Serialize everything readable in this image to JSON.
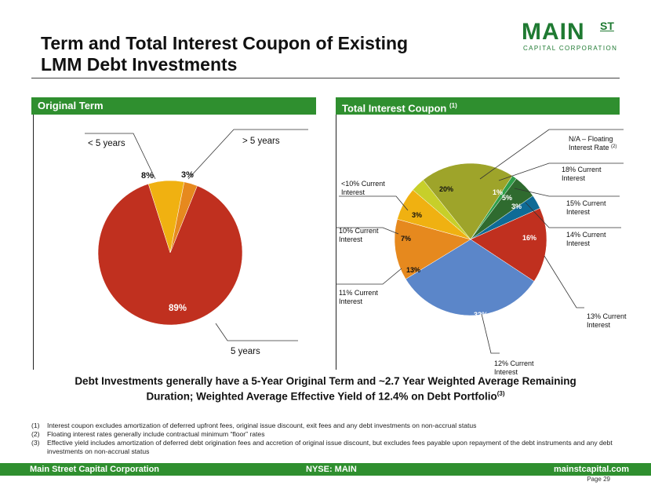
{
  "title_line1": "Term and Total Interest Coupon of Existing",
  "title_line2": "LMM Debt Investments",
  "logo": {
    "word": "MAIN",
    "st": "ST",
    "sub": "CAPITAL CORPORATION"
  },
  "left_header": "Original Term",
  "right_header": "Total Interest Coupon",
  "right_header_sup": "(1)",
  "headline_line1": "Debt Investments generally have a 5-Year Original Term and ~2.7 Year Weighted Average Remaining",
  "headline_line2": "Duration;   Weighted Average Effective Yield of 12.4% on Debt Portfolio",
  "headline_sup": "(3)",
  "notes": [
    {
      "num": "(1)",
      "text": "Interest coupon excludes amortization of deferred upfront fees, original issue discount, exit fees and any debt investments on non-accrual status"
    },
    {
      "num": "(2)",
      "text": "Floating interest rates generally include contractual minimum “floor” rates"
    },
    {
      "num": "(3)",
      "text": "Effective yield includes amortization of deferred debt origination fees and accretion of original issue discount, but excludes fees payable upon repayment of the debt instruments and any debt investments on non-accrual status"
    }
  ],
  "footer": {
    "left": "Main Street Capital Corporation",
    "center": "NYSE: MAIN",
    "right": "mainstcapital.com"
  },
  "page_label": "Page  29",
  "colors": {
    "green": "#2f8f2f",
    "brand": "#1f7a32"
  },
  "chart_data": [
    {
      "type": "pie",
      "title": "Original Term",
      "categories": [
        "5 years",
        "< 5 years",
        "> 5 years"
      ],
      "values": [
        89,
        8,
        3
      ],
      "value_labels": [
        "89%",
        "8%",
        "3%"
      ],
      "colors": [
        "#c0301f",
        "#f0b111",
        "#e6891e"
      ]
    },
    {
      "type": "pie",
      "title": "Total Interest Coupon",
      "categories": [
        "14% Current Interest",
        "13% Current Interest",
        "12% Current Interest",
        "11% Current Interest",
        "10% Current Interest",
        "<10% Current Interest",
        "N/A – Floating Interest Rate",
        "18% Current Interest",
        "15% Current Interest"
      ],
      "category_sup": [
        "",
        "",
        "",
        "",
        "",
        "",
        "(2)",
        "",
        ""
      ],
      "values": [
        3,
        16,
        32,
        13,
        7,
        3,
        20,
        1,
        5
      ],
      "value_labels": [
        "3%",
        "16%",
        "32%",
        "13%",
        "7%",
        "3%",
        "20%",
        "1%",
        "5%"
      ],
      "colors": [
        "#0f6b96",
        "#c0301f",
        "#5b86c9",
        "#e6891e",
        "#f0b111",
        "#c7cf2a",
        "#9ea42a",
        "#2f9e4a",
        "#2f6b2f"
      ]
    }
  ]
}
